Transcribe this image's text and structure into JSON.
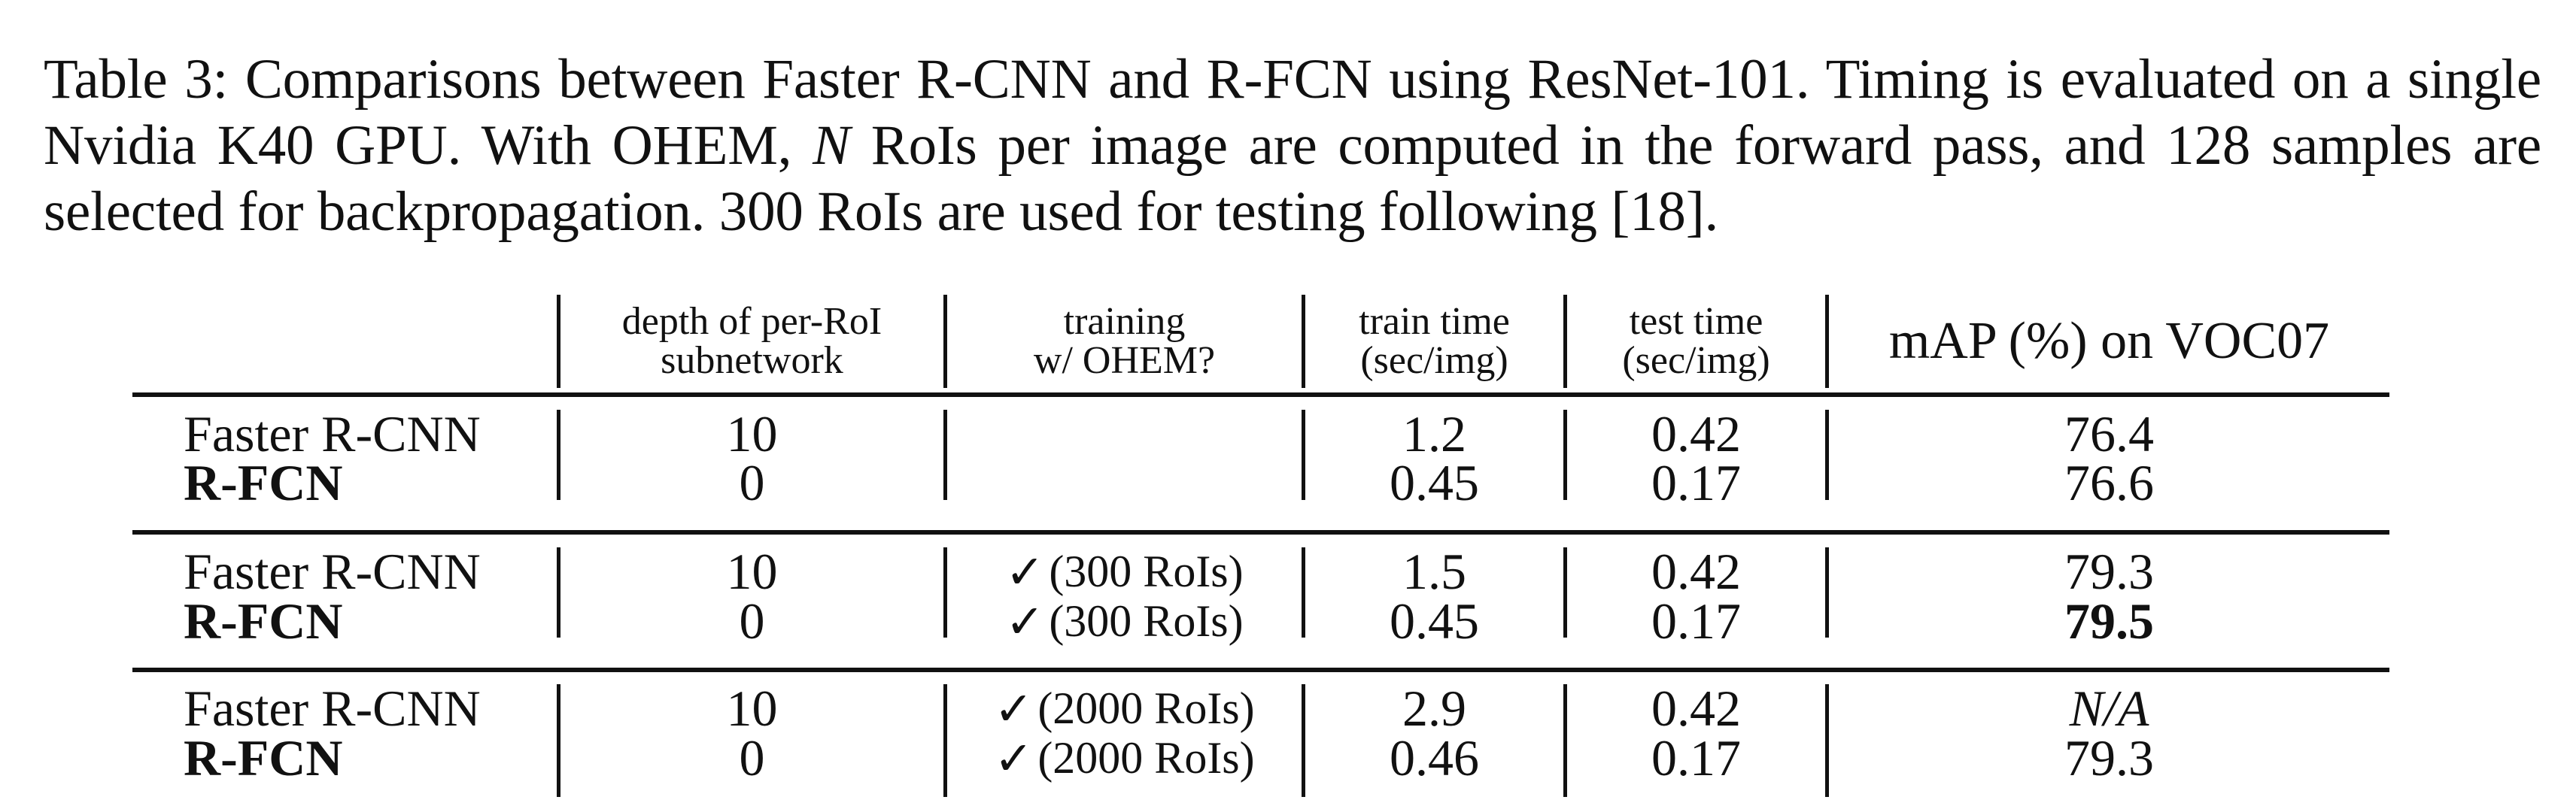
{
  "caption": {
    "part1": "Table 3: Comparisons between Faster R-CNN and R-FCN using ResNet-101. Timing is evaluated on a single Nvidia K40 GPU. With OHEM, ",
    "var": "N",
    "part2": " RoIs per image are computed in the forward pass, and 128 samples are selected for backpropagation. 300 RoIs are used for testing following [18]."
  },
  "headers": {
    "depth_l1": "depth of per-RoI",
    "depth_l2": "subnetwork",
    "ohem_l1": "training",
    "ohem_l2": "w/ OHEM?",
    "train_l1": "train time",
    "train_l2": "(sec/img)",
    "test_l1": "test time",
    "test_l2": "(sec/img)",
    "map": "mAP (%) on VOC07"
  },
  "rows": [
    {
      "method": "Faster R-CNN",
      "depth": "10",
      "ohem": "",
      "train": "1.2",
      "test": "0.42",
      "map": "76.4"
    },
    {
      "method": "R-FCN",
      "depth": "0",
      "ohem": "",
      "train": "0.45",
      "test": "0.17",
      "map": "76.6"
    },
    {
      "method": "Faster R-CNN",
      "depth": "10",
      "ohem": "(300 RoIs)",
      "train": "1.5",
      "test": "0.42",
      "map": "79.3"
    },
    {
      "method": "R-FCN",
      "depth": "0",
      "ohem": "(300 RoIs)",
      "train": "0.45",
      "test": "0.17",
      "map": "79.5"
    },
    {
      "method": "Faster R-CNN",
      "depth": "10",
      "ohem": "(2000 RoIs)",
      "train": "2.9",
      "test": "0.42",
      "map": "N/A"
    },
    {
      "method": "R-FCN",
      "depth": "0",
      "ohem": "(2000 RoIs)",
      "train": "0.46",
      "test": "0.17",
      "map": "79.3"
    }
  ],
  "checkmark": "✓"
}
